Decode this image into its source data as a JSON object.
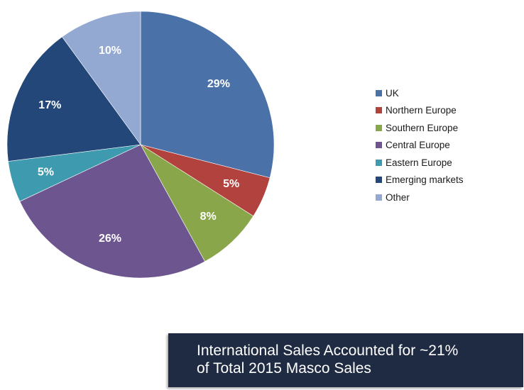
{
  "chart_data": {
    "type": "pie",
    "title": "",
    "slices": [
      {
        "label": "UK",
        "value": 29,
        "display": "29%",
        "color": "#4a72a8"
      },
      {
        "label": "Northern Europe",
        "value": 5,
        "display": "5%",
        "color": "#b1423e"
      },
      {
        "label": "Southern Europe",
        "value": 8,
        "display": "8%",
        "color": "#89a64a"
      },
      {
        "label": "Central Europe",
        "value": 26,
        "display": "26%",
        "color": "#6d5590"
      },
      {
        "label": "Eastern Europe",
        "value": 5,
        "display": "5%",
        "color": "#3e9aaf"
      },
      {
        "label": "Emerging markets",
        "value": 17,
        "display": "17%",
        "color": "#234778"
      },
      {
        "label": "Other",
        "value": 10,
        "display": "10%",
        "color": "#93a9d1"
      }
    ],
    "legend_position": "right"
  },
  "banner": {
    "line1": "International Sales Accounted for ~21%",
    "line2": "of Total 2015 Masco Sales",
    "background": "#1f2b43"
  }
}
